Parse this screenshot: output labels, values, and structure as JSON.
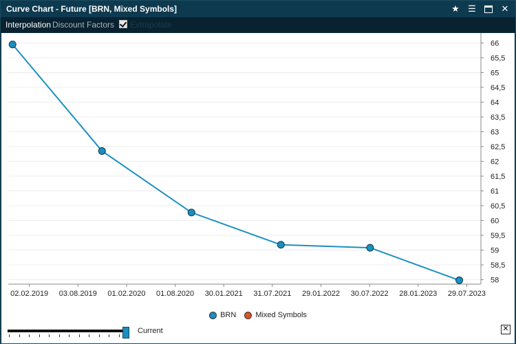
{
  "window": {
    "title": "Curve Chart - Future [BRN, Mixed Symbols]",
    "icons": [
      "star-icon",
      "menu-icon",
      "maximize-icon",
      "close-icon"
    ]
  },
  "toolbar": {
    "interpolation_label": "Interpolation",
    "discount_factors_label": "Discount Factors",
    "extrapolate_label": "Extrapolate",
    "extrapolate_checked": true
  },
  "colors": {
    "title_bg": "#0e3a50",
    "series_line": "#1a8fbf",
    "brn_marker": "#1a8fbf",
    "mixed_marker": "#e0522b"
  },
  "chart_data": {
    "type": "line",
    "x": [
      "01.12.2018",
      "01.11.2019",
      "01.10.2020",
      "01.09.2021",
      "01.08.2022",
      "01.07.2023"
    ],
    "series": [
      {
        "name": "BRN",
        "values": [
          65.95,
          62.35,
          60.27,
          59.18,
          59.08,
          57.98
        ]
      }
    ],
    "xticks": [
      "02.02.2019",
      "03.08.2019",
      "01.02.2020",
      "01.08.2020",
      "30.01.2021",
      "31.07.2021",
      "29.01.2022",
      "30.07.2022",
      "28.01.2023",
      "29.07.2023"
    ],
    "yticks": [
      "58",
      "58,5",
      "59",
      "59,5",
      "60",
      "60,5",
      "61",
      "61,5",
      "62",
      "62,5",
      "63",
      "63,5",
      "64",
      "64,5",
      "65",
      "65,5",
      "66"
    ],
    "ylim": [
      57.85,
      66.15
    ],
    "y_axis_position": "right",
    "grid": true,
    "legend": [
      "BRN",
      "Mixed Symbols"
    ],
    "legend_position": "bottom-center"
  },
  "footer": {
    "slider_label": "Current",
    "slider_value": 1.0,
    "close_symbol": "✕"
  }
}
